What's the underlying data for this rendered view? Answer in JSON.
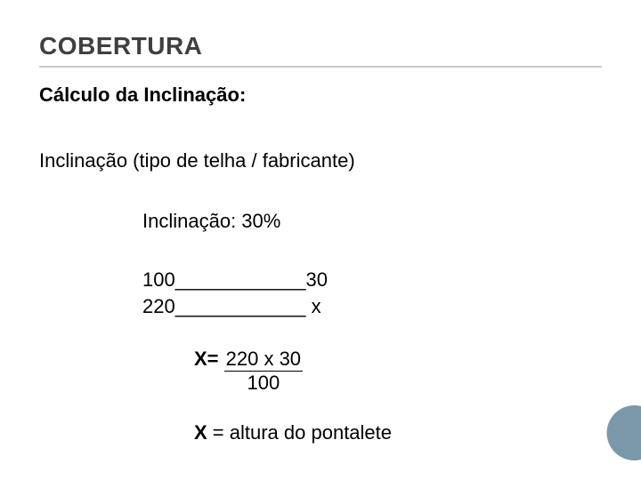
{
  "title": "COBERTURA",
  "subtitle": "Cálculo da Inclinação:",
  "line1": "Inclinação (tipo de telha / fabricante)",
  "line2": "Inclinação: 30%",
  "ratio": "100____________30\n220____________ x",
  "formula": {
    "lead": "X= ",
    "numerator": "220 x 30",
    "denominator": "100"
  },
  "result": {
    "lead": "X ",
    "rest": "= altura do pontalete"
  },
  "colors": {
    "title_color": "#3f3f3f",
    "underline_color": "#c8c8c8",
    "text_color": "#000000",
    "circle_color": "#7b98ab",
    "background": "#ffffff"
  },
  "fontsizes": {
    "title": 28,
    "body": 22
  }
}
